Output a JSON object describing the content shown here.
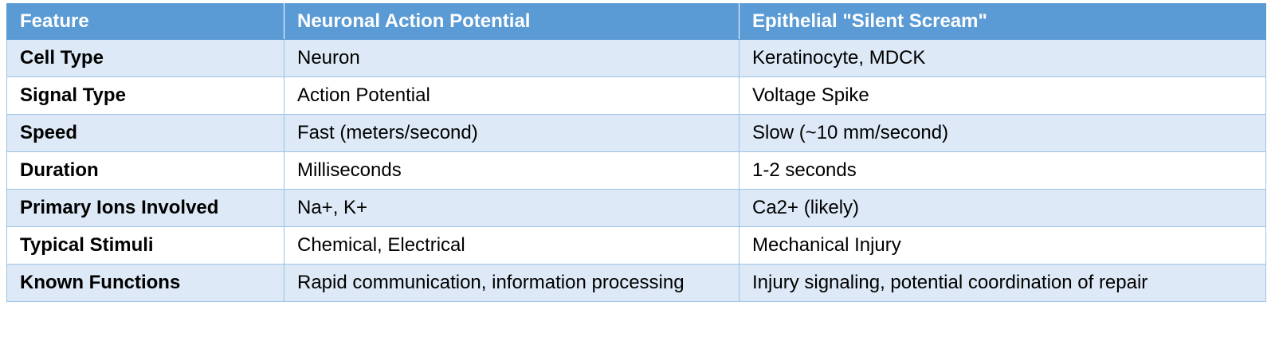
{
  "table": {
    "header": [
      "Feature",
      "Neuronal Action Potential",
      "Epithelial \"Silent Scream\""
    ],
    "rows": [
      [
        "Cell Type",
        "Neuron",
        "Keratinocyte, MDCK"
      ],
      [
        "Signal Type",
        "Action Potential",
        "Voltage Spike"
      ],
      [
        "Speed",
        "Fast (meters/second)",
        "Slow (~10 mm/second)"
      ],
      [
        "Duration",
        "Milliseconds",
        "1-2 seconds"
      ],
      [
        "Primary Ions Involved",
        "Na+, K+",
        "Ca2+ (likely)"
      ],
      [
        "Typical Stimuli",
        "Chemical, Electrical",
        "Mechanical Injury"
      ],
      [
        "Known Functions",
        "Rapid communication, information processing",
        "Injury signaling, potential coordination of repair"
      ]
    ]
  }
}
